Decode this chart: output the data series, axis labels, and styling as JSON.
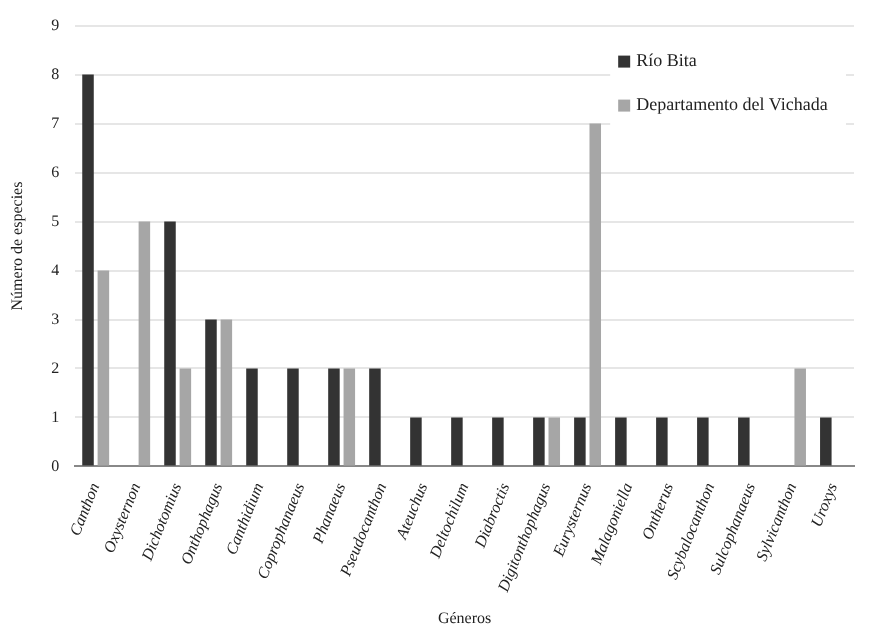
{
  "chart_data": {
    "type": "bar",
    "xlabel": "Géneros",
    "ylabel": "Número de especies",
    "categories": [
      "Canthon",
      "Oxysternon",
      "Dichotomius",
      "Onthophagus",
      "Canthidium",
      "Coprophanaeus",
      "Phanaeus",
      "Pseudocanthon",
      "Ateuchus",
      "Deltochilum",
      "Diabroctis",
      "Digitonthophagus",
      "Eurysternus",
      "Malagoniella",
      "Ontherus",
      "Scybalocanthon",
      "Sulcophanaeus",
      "Sylvicanthon",
      "Uroxys"
    ],
    "series": [
      {
        "name": "Río Bita",
        "color": "#333333",
        "values": [
          8,
          0,
          5,
          3,
          2,
          2,
          2,
          2,
          1,
          1,
          1,
          1,
          1,
          1,
          1,
          1,
          1,
          0,
          1
        ]
      },
      {
        "name": "Departamento del Vichada",
        "color": "#a6a6a6",
        "values": [
          4,
          5,
          2,
          3,
          0,
          0,
          2,
          0,
          0,
          0,
          0,
          1,
          7,
          0,
          0,
          0,
          0,
          2,
          0
        ]
      }
    ],
    "ylim": [
      0,
      9
    ],
    "yticks": [
      0,
      1,
      2,
      3,
      4,
      5,
      6,
      7,
      8,
      9
    ],
    "grid": "y",
    "legend": "top right"
  }
}
